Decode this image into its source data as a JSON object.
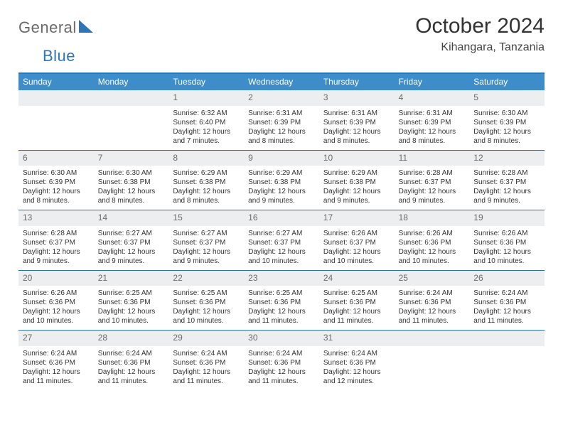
{
  "brand": {
    "part1": "General",
    "part2": "Blue"
  },
  "title": "October 2024",
  "location": "Kihangara, Tanzania",
  "colors": {
    "header_bar": "#3d8dca",
    "accent_line": "#2e6fa8",
    "daynum_bg": "#eceef0",
    "brand_gray": "#6a6a6a",
    "brand_blue": "#2e75b6"
  },
  "weekdays": [
    "Sunday",
    "Monday",
    "Tuesday",
    "Wednesday",
    "Thursday",
    "Friday",
    "Saturday"
  ],
  "weeks": [
    [
      null,
      null,
      {
        "d": "1",
        "sr": "6:32 AM",
        "ss": "6:40 PM",
        "dl": "12 hours and 7 minutes."
      },
      {
        "d": "2",
        "sr": "6:31 AM",
        "ss": "6:39 PM",
        "dl": "12 hours and 8 minutes."
      },
      {
        "d": "3",
        "sr": "6:31 AM",
        "ss": "6:39 PM",
        "dl": "12 hours and 8 minutes."
      },
      {
        "d": "4",
        "sr": "6:31 AM",
        "ss": "6:39 PM",
        "dl": "12 hours and 8 minutes."
      },
      {
        "d": "5",
        "sr": "6:30 AM",
        "ss": "6:39 PM",
        "dl": "12 hours and 8 minutes."
      }
    ],
    [
      {
        "d": "6",
        "sr": "6:30 AM",
        "ss": "6:39 PM",
        "dl": "12 hours and 8 minutes."
      },
      {
        "d": "7",
        "sr": "6:30 AM",
        "ss": "6:38 PM",
        "dl": "12 hours and 8 minutes."
      },
      {
        "d": "8",
        "sr": "6:29 AM",
        "ss": "6:38 PM",
        "dl": "12 hours and 8 minutes."
      },
      {
        "d": "9",
        "sr": "6:29 AM",
        "ss": "6:38 PM",
        "dl": "12 hours and 9 minutes."
      },
      {
        "d": "10",
        "sr": "6:29 AM",
        "ss": "6:38 PM",
        "dl": "12 hours and 9 minutes."
      },
      {
        "d": "11",
        "sr": "6:28 AM",
        "ss": "6:37 PM",
        "dl": "12 hours and 9 minutes."
      },
      {
        "d": "12",
        "sr": "6:28 AM",
        "ss": "6:37 PM",
        "dl": "12 hours and 9 minutes."
      }
    ],
    [
      {
        "d": "13",
        "sr": "6:28 AM",
        "ss": "6:37 PM",
        "dl": "12 hours and 9 minutes."
      },
      {
        "d": "14",
        "sr": "6:27 AM",
        "ss": "6:37 PM",
        "dl": "12 hours and 9 minutes."
      },
      {
        "d": "15",
        "sr": "6:27 AM",
        "ss": "6:37 PM",
        "dl": "12 hours and 9 minutes."
      },
      {
        "d": "16",
        "sr": "6:27 AM",
        "ss": "6:37 PM",
        "dl": "12 hours and 10 minutes."
      },
      {
        "d": "17",
        "sr": "6:26 AM",
        "ss": "6:37 PM",
        "dl": "12 hours and 10 minutes."
      },
      {
        "d": "18",
        "sr": "6:26 AM",
        "ss": "6:36 PM",
        "dl": "12 hours and 10 minutes."
      },
      {
        "d": "19",
        "sr": "6:26 AM",
        "ss": "6:36 PM",
        "dl": "12 hours and 10 minutes."
      }
    ],
    [
      {
        "d": "20",
        "sr": "6:26 AM",
        "ss": "6:36 PM",
        "dl": "12 hours and 10 minutes."
      },
      {
        "d": "21",
        "sr": "6:25 AM",
        "ss": "6:36 PM",
        "dl": "12 hours and 10 minutes."
      },
      {
        "d": "22",
        "sr": "6:25 AM",
        "ss": "6:36 PM",
        "dl": "12 hours and 10 minutes."
      },
      {
        "d": "23",
        "sr": "6:25 AM",
        "ss": "6:36 PM",
        "dl": "12 hours and 11 minutes."
      },
      {
        "d": "24",
        "sr": "6:25 AM",
        "ss": "6:36 PM",
        "dl": "12 hours and 11 minutes."
      },
      {
        "d": "25",
        "sr": "6:24 AM",
        "ss": "6:36 PM",
        "dl": "12 hours and 11 minutes."
      },
      {
        "d": "26",
        "sr": "6:24 AM",
        "ss": "6:36 PM",
        "dl": "12 hours and 11 minutes."
      }
    ],
    [
      {
        "d": "27",
        "sr": "6:24 AM",
        "ss": "6:36 PM",
        "dl": "12 hours and 11 minutes."
      },
      {
        "d": "28",
        "sr": "6:24 AM",
        "ss": "6:36 PM",
        "dl": "12 hours and 11 minutes."
      },
      {
        "d": "29",
        "sr": "6:24 AM",
        "ss": "6:36 PM",
        "dl": "12 hours and 11 minutes."
      },
      {
        "d": "30",
        "sr": "6:24 AM",
        "ss": "6:36 PM",
        "dl": "12 hours and 11 minutes."
      },
      {
        "d": "31",
        "sr": "6:24 AM",
        "ss": "6:36 PM",
        "dl": "12 hours and 12 minutes."
      },
      null,
      null
    ]
  ],
  "labels": {
    "sunrise": "Sunrise:",
    "sunset": "Sunset:",
    "daylight": "Daylight:"
  }
}
